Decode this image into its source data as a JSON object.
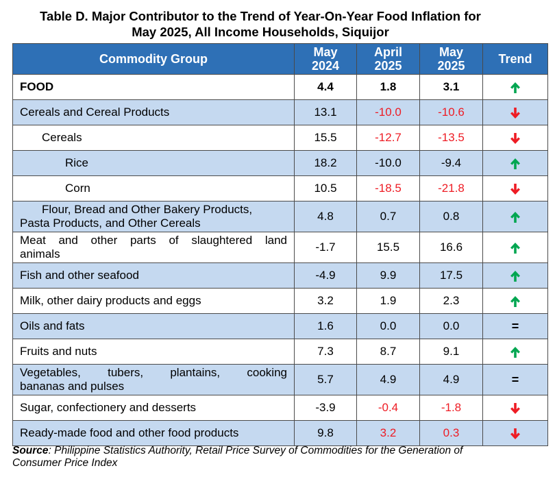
{
  "title": {
    "line1": "Table D. Major Contributor to the Trend of Year-On-Year Food Inflation for",
    "line2": "May 2025, All Income Households, Siquijor"
  },
  "header": {
    "commodity": "Commodity Group",
    "col1_l1": "May",
    "col1_l2": "2024",
    "col2_l1": "April",
    "col2_l2": "2025",
    "col3_l1": "May",
    "col3_l2": "2025",
    "trend": "Trend"
  },
  "rows": [
    {
      "name": "FOOD",
      "v1": "4.4",
      "v2": "1.8",
      "v3": "3.1",
      "trend": "up-arrow-icon"
    },
    {
      "name": "Cereals and Cereal Products",
      "v1": "13.1",
      "v2": "-10.0",
      "v3": "-10.6",
      "trend": "down-arrow-icon"
    },
    {
      "name": "Cereals",
      "v1": "15.5",
      "v2": "-12.7",
      "v3": "-13.5",
      "trend": "down-arrow-icon"
    },
    {
      "name": "Rice",
      "v1": "18.2",
      "v2": "-10.0",
      "v3": "-9.4",
      "trend": "up-arrow-icon"
    },
    {
      "name": "Corn",
      "v1": "10.5",
      "v2": "-18.5",
      "v3": "-21.8",
      "trend": "down-arrow-icon"
    },
    {
      "name_l1": "Flour, Bread and Other Bakery Products,",
      "name_l2": "Pasta Products,  and Other Cereals",
      "v1": "4.8",
      "v2": "0.7",
      "v3": "0.8",
      "trend": "up-arrow-icon"
    },
    {
      "name_l1": "Meat and other parts of slaughtered land",
      "name_l2": "animals",
      "v1": "-1.7",
      "v2": "15.5",
      "v3": "16.6",
      "trend": "up-arrow-icon"
    },
    {
      "name": "Fish and other seafood",
      "v1": "-4.9",
      "v2": "9.9",
      "v3": "17.5",
      "trend": "up-arrow-icon"
    },
    {
      "name": "Milk, other dairy products and eggs",
      "v1": "3.2",
      "v2": "1.9",
      "v3": "2.3",
      "trend": "up-arrow-icon"
    },
    {
      "name": "Oils and fats",
      "v1": "1.6",
      "v2": "0.0",
      "v3": "0.0",
      "trend": "="
    },
    {
      "name": "Fruits and nuts",
      "v1": "7.3",
      "v2": "8.7",
      "v3": "9.1",
      "trend": "up-arrow-icon"
    },
    {
      "name_l1": "Vegetables, tubers, plantains, cooking",
      "name_l2": "bananas and pulses",
      "v1": "5.7",
      "v2": "4.9",
      "v3": "4.9",
      "trend": "="
    },
    {
      "name": "Sugar, confectionery and desserts",
      "v1": "-3.9",
      "v2": "-0.4",
      "v3": "-1.8",
      "trend": "down-arrow-icon"
    },
    {
      "name": "Ready-made food and other food products",
      "v1": "9.8",
      "v2": "3.2",
      "v3": "0.3",
      "trend": "down-arrow-icon"
    }
  ],
  "colors": {
    "header_bg": "#2e70b6",
    "row_shade": "#c5d9f0",
    "negative": "#ee1c24",
    "up_arrow": "#00a651",
    "down_arrow": "#ee1c24"
  },
  "source": {
    "label": "Source",
    "text": ": Philippine Statistics Authority, Retail Price Survey of Commodities for the Generation of",
    "text2": "Consumer Price Index"
  }
}
